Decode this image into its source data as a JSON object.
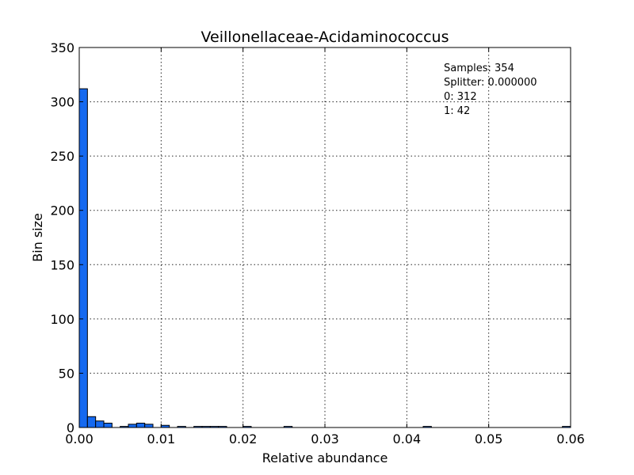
{
  "chart_data": {
    "type": "bar",
    "title": "Veillonellaceae-Acidaminococcus",
    "xlabel": "Relative abundance",
    "ylabel": "Bin size",
    "xlim": [
      0,
      0.06
    ],
    "ylim": [
      0,
      350
    ],
    "grid": true,
    "bar_color": "#1569f0",
    "x_ticks": [
      {
        "value": 0.0,
        "label": "0.00"
      },
      {
        "value": 0.01,
        "label": "0.01"
      },
      {
        "value": 0.02,
        "label": "0.02"
      },
      {
        "value": 0.03,
        "label": "0.03"
      },
      {
        "value": 0.04,
        "label": "0.04"
      },
      {
        "value": 0.05,
        "label": "0.05"
      },
      {
        "value": 0.06,
        "label": "0.06"
      }
    ],
    "y_ticks": [
      {
        "value": 0,
        "label": "0"
      },
      {
        "value": 50,
        "label": "50"
      },
      {
        "value": 100,
        "label": "100"
      },
      {
        "value": 150,
        "label": "150"
      },
      {
        "value": 200,
        "label": "200"
      },
      {
        "value": 250,
        "label": "250"
      },
      {
        "value": 300,
        "label": "300"
      },
      {
        "value": 350,
        "label": "350"
      }
    ],
    "bin_width": 0.001,
    "bins": [
      {
        "x": 0.0,
        "count": 312
      },
      {
        "x": 0.001,
        "count": 10
      },
      {
        "x": 0.002,
        "count": 6
      },
      {
        "x": 0.003,
        "count": 4
      },
      {
        "x": 0.005,
        "count": 1
      },
      {
        "x": 0.006,
        "count": 3
      },
      {
        "x": 0.007,
        "count": 4
      },
      {
        "x": 0.008,
        "count": 3
      },
      {
        "x": 0.009,
        "count": 0
      },
      {
        "x": 0.01,
        "count": 2
      },
      {
        "x": 0.012,
        "count": 1
      },
      {
        "x": 0.014,
        "count": 1
      },
      {
        "x": 0.015,
        "count": 1
      },
      {
        "x": 0.016,
        "count": 1
      },
      {
        "x": 0.017,
        "count": 1
      },
      {
        "x": 0.02,
        "count": 1
      },
      {
        "x": 0.025,
        "count": 1
      },
      {
        "x": 0.042,
        "count": 1
      },
      {
        "x": 0.059,
        "count": 1
      }
    ],
    "annotations": [
      "Samples: 354",
      "Splitter: 0.000000",
      "0: 312",
      "1: 42"
    ]
  }
}
